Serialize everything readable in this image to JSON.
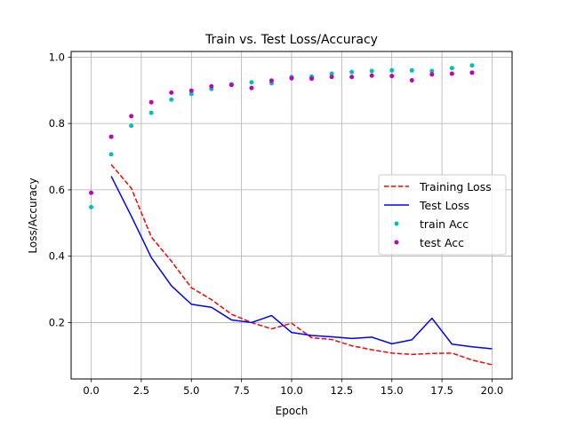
{
  "chart_data": {
    "type": "line",
    "title": "Train vs. Test Loss/Accuracy",
    "xlabel": "Epoch",
    "ylabel": "Loss/Accuracy",
    "xlim": [
      -1.0,
      21.0
    ],
    "ylim": [
      0.03,
      1.017
    ],
    "xticks": [
      0.0,
      2.5,
      5.0,
      7.5,
      10.0,
      12.5,
      15.0,
      17.5,
      20.0
    ],
    "xtick_labels": [
      "0.0",
      "2.5",
      "5.0",
      "7.5",
      "10.0",
      "12.5",
      "15.0",
      "17.5",
      "20.0"
    ],
    "yticks": [
      0.2,
      0.4,
      0.6,
      0.8,
      1.0
    ],
    "ytick_labels": [
      "0.2",
      "0.4",
      "0.6",
      "0.8",
      "1.0"
    ],
    "grid": true,
    "legend_position": "center-right",
    "series": [
      {
        "name": "Training Loss",
        "kind": "line",
        "style": "dashed",
        "color": "#ff0000",
        "x": [
          1,
          2,
          3,
          4,
          5,
          6,
          7,
          8,
          9,
          10,
          11,
          12,
          13,
          14,
          15,
          16,
          17,
          18,
          19,
          20
        ],
        "y": [
          0.676,
          0.605,
          0.458,
          0.385,
          0.305,
          0.269,
          0.225,
          0.2,
          0.181,
          0.198,
          0.154,
          0.149,
          0.13,
          0.118,
          0.108,
          0.104,
          0.107,
          0.108,
          0.087,
          0.073
        ]
      },
      {
        "name": "Test Loss",
        "kind": "line",
        "style": "solid",
        "color": "#0000ff",
        "x": [
          1,
          2,
          3,
          4,
          5,
          6,
          7,
          8,
          9,
          10,
          11,
          12,
          13,
          14,
          15,
          16,
          17,
          18,
          19,
          20
        ],
        "y": [
          0.641,
          0.521,
          0.396,
          0.311,
          0.255,
          0.246,
          0.208,
          0.2,
          0.221,
          0.17,
          0.161,
          0.157,
          0.152,
          0.156,
          0.136,
          0.148,
          0.213,
          0.135,
          0.127,
          0.121
        ]
      },
      {
        "name": "train Acc",
        "kind": "scatter",
        "color": "#00bfbf",
        "x": [
          0,
          1,
          2,
          3,
          4,
          5,
          6,
          7,
          8,
          9,
          10,
          11,
          12,
          13,
          14,
          15,
          16,
          17,
          18,
          19
        ],
        "y": [
          0.548,
          0.707,
          0.793,
          0.832,
          0.872,
          0.889,
          0.904,
          0.918,
          0.924,
          0.921,
          0.94,
          0.941,
          0.95,
          0.955,
          0.958,
          0.96,
          0.96,
          0.958,
          0.967,
          0.975
        ]
      },
      {
        "name": "test Acc",
        "kind": "scatter",
        "color": "#bf00bf",
        "x": [
          0,
          1,
          2,
          3,
          4,
          5,
          6,
          7,
          8,
          9,
          10,
          11,
          12,
          13,
          14,
          15,
          16,
          17,
          18,
          19
        ],
        "y": [
          0.591,
          0.76,
          0.822,
          0.864,
          0.893,
          0.899,
          0.912,
          0.916,
          0.907,
          0.929,
          0.936,
          0.935,
          0.94,
          0.94,
          0.944,
          0.943,
          0.93,
          0.948,
          0.95,
          0.953
        ]
      }
    ]
  }
}
